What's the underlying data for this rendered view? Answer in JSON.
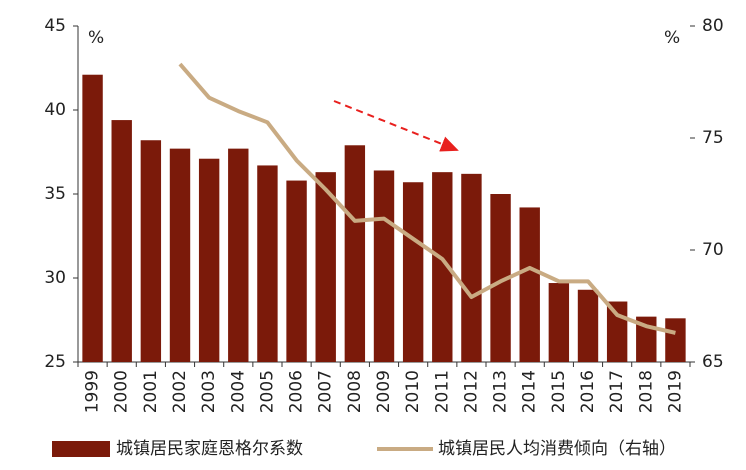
{
  "chart_data": {
    "type": "bar",
    "categories": [
      "1999",
      "2000",
      "2001",
      "2002",
      "2003",
      "2004",
      "2005",
      "2006",
      "2007",
      "2008",
      "2009",
      "2010",
      "2011",
      "2012",
      "2013",
      "2014",
      "2015",
      "2016",
      "2017",
      "2018",
      "2019"
    ],
    "series": [
      {
        "name": "城镇居民家庭恩格尔系数",
        "type": "bar",
        "color": "#7b1a0a",
        "values": [
          42.1,
          39.4,
          38.2,
          37.7,
          37.1,
          37.7,
          36.7,
          35.8,
          36.3,
          37.9,
          36.4,
          35.7,
          36.3,
          36.2,
          35.0,
          34.2,
          29.7,
          29.3,
          28.6,
          27.7,
          27.6
        ]
      },
      {
        "name": "城镇居民人均消费倾向（右轴）",
        "type": "line",
        "axis": "y2",
        "color": "#c9ab83",
        "values": [
          null,
          null,
          null,
          78.3,
          76.8,
          76.2,
          75.7,
          74.0,
          72.7,
          71.3,
          71.4,
          70.5,
          69.6,
          67.9,
          68.6,
          69.2,
          68.6,
          68.6,
          67.1,
          66.6,
          66.3
        ]
      }
    ],
    "ylim": [
      25,
      45
    ],
    "yticks": [
      25,
      30,
      35,
      40,
      45
    ],
    "y2lim": [
      65,
      80
    ],
    "y2ticks": [
      65,
      70,
      75,
      80
    ],
    "y_unit": "%",
    "y2_unit": "%",
    "legend": "bottom"
  }
}
